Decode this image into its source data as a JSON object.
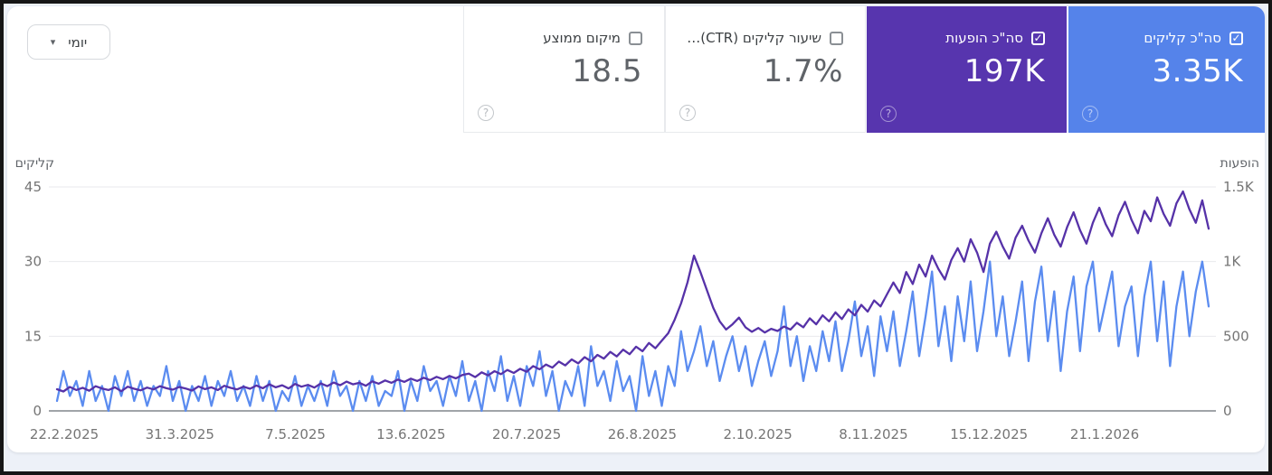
{
  "controls": {
    "granularity_label": "יומי"
  },
  "metric_cards": [
    {
      "id": "average-position",
      "label": "מיקום ממוצע",
      "value": "18.5",
      "checked": false,
      "variant": "white"
    },
    {
      "id": "ctr",
      "label": "שיעור קליקים (CTR)…",
      "value": "1.7%",
      "checked": false,
      "variant": "white"
    },
    {
      "id": "total-impressions",
      "label": "סה\"כ הופעות",
      "value": "197K",
      "checked": true,
      "variant": "purple"
    },
    {
      "id": "total-clicks",
      "label": "סה\"כ קליקים",
      "value": "3.35K",
      "checked": true,
      "variant": "blue"
    }
  ],
  "icons": {
    "help": "?",
    "check": "✓",
    "caret": "▾"
  },
  "colors": {
    "clicks": "#5b8cf0",
    "impressions": "#5632a8",
    "grid": "#e8eaed",
    "zero_line": "#80868b",
    "tick_text": "#757575",
    "axis_title": "#5f6368"
  },
  "chart_data": {
    "type": "line",
    "title": "",
    "grid": true,
    "left_axis": {
      "title": "קליקים",
      "max": 45,
      "ticks": [
        {
          "label": "45",
          "value": 45
        },
        {
          "label": "30",
          "value": 30
        },
        {
          "label": "15",
          "value": 15
        },
        {
          "label": "0",
          "value": 0
        }
      ]
    },
    "right_axis": {
      "title": "הופעות",
      "max": 1500,
      "ticks": [
        {
          "label": "1.5K",
          "value": 1500
        },
        {
          "label": "1K",
          "value": 1000
        },
        {
          "label": "500",
          "value": 500
        },
        {
          "label": "0",
          "value": 0
        }
      ]
    },
    "x_labels": [
      "22.2.2025",
      "31.3.2025",
      "7.5.2025",
      "13.6.2025",
      "20.7.2025",
      "26.8.2025",
      "2.10.2025",
      "8.11.2025",
      "15.12.2025",
      "21.1.2026"
    ],
    "series": [
      {
        "name": "סה\"כ קליקים",
        "axis": "left",
        "color": "#5b8cf0",
        "values": [
          2,
          8,
          3,
          6,
          1,
          8,
          2,
          5,
          0,
          7,
          3,
          8,
          2,
          6,
          1,
          5,
          3,
          9,
          2,
          6,
          0,
          5,
          2,
          7,
          1,
          6,
          3,
          8,
          2,
          5,
          1,
          7,
          2,
          6,
          0,
          4,
          2,
          7,
          1,
          5,
          2,
          6,
          1,
          8,
          3,
          5,
          0,
          6,
          2,
          7,
          1,
          4,
          3,
          8,
          0,
          6,
          2,
          9,
          4,
          6,
          1,
          7,
          3,
          10,
          2,
          6,
          0,
          8,
          4,
          11,
          2,
          7,
          1,
          9,
          5,
          12,
          3,
          8,
          0,
          6,
          3,
          9,
          1,
          13,
          5,
          8,
          2,
          10,
          4,
          7,
          0,
          11,
          3,
          8,
          1,
          9,
          5,
          16,
          8,
          12,
          17,
          9,
          14,
          6,
          11,
          15,
          8,
          13,
          5,
          10,
          14,
          7,
          12,
          21,
          9,
          15,
          6,
          13,
          8,
          16,
          10,
          18,
          8,
          14,
          22,
          11,
          17,
          7,
          19,
          12,
          20,
          9,
          16,
          24,
          11,
          19,
          28,
          13,
          21,
          10,
          23,
          14,
          26,
          12,
          20,
          30,
          15,
          23,
          11,
          18,
          26,
          10,
          22,
          29,
          14,
          24,
          8,
          20,
          27,
          12,
          25,
          30,
          16,
          22,
          28,
          13,
          21,
          25,
          11,
          23,
          30,
          14,
          26,
          9,
          21,
          28,
          15,
          24,
          30,
          21
        ]
      },
      {
        "name": "סה\"כ הופעות",
        "axis": "right",
        "color": "#5632a8",
        "values": [
          145,
          130,
          160,
          140,
          155,
          135,
          165,
          150,
          140,
          158,
          132,
          162,
          148,
          138,
          156,
          144,
          166,
          152,
          142,
          160,
          150,
          136,
          164,
          146,
          158,
          140,
          168,
          154,
          144,
          162,
          148,
          170,
          152,
          178,
          158,
          172,
          150,
          180,
          162,
          174,
          156,
          184,
          166,
          190,
          172,
          196,
          178,
          188,
          168,
          198,
          182,
          204,
          188,
          210,
          194,
          216,
          200,
          222,
          206,
          228,
          212,
          234,
          218,
          240,
          250,
          226,
          258,
          238,
          266,
          246,
          274,
          254,
          282,
          262,
          300,
          278,
          310,
          290,
          330,
          305,
          345,
          318,
          360,
          332,
          375,
          350,
          395,
          365,
          410,
          380,
          430,
          400,
          455,
          420,
          470,
          520,
          610,
          720,
          860,
          1040,
          930,
          810,
          690,
          600,
          545,
          580,
          625,
          560,
          530,
          555,
          525,
          550,
          535,
          565,
          545,
          590,
          560,
          620,
          580,
          640,
          600,
          660,
          615,
          680,
          640,
          710,
          665,
          740,
          700,
          780,
          860,
          790,
          930,
          850,
          980,
          900,
          1040,
          950,
          880,
          1010,
          1090,
          1000,
          1150,
          1060,
          930,
          1120,
          1200,
          1100,
          1020,
          1160,
          1240,
          1140,
          1060,
          1190,
          1290,
          1180,
          1100,
          1230,
          1330,
          1210,
          1120,
          1260,
          1360,
          1250,
          1170,
          1310,
          1400,
          1280,
          1190,
          1340,
          1270,
          1430,
          1320,
          1240,
          1390,
          1470,
          1350,
          1260,
          1410,
          1220
        ]
      }
    ]
  }
}
